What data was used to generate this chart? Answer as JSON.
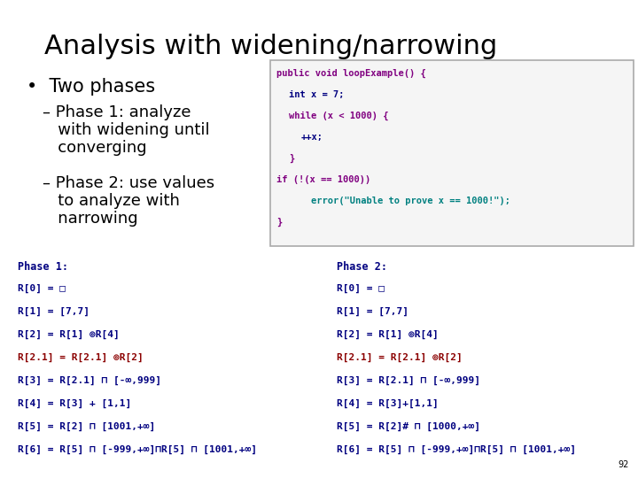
{
  "title": "Analysis with widening/narrowing",
  "bg_color": "#ffffff",
  "title_color": "#000000",
  "title_fontsize": 22,
  "bullet_color": "#000000",
  "bullet_fontsize": 15,
  "sub_bullet_fontsize": 13,
  "code_lines": [
    {
      "text": "public void loopExample() {",
      "color": "#800080",
      "indent": 0
    },
    {
      "text": "int x = 7;",
      "color": "#000080",
      "indent": 1
    },
    {
      "text": "while (x < 1000) {",
      "color": "#800080",
      "indent": 1
    },
    {
      "text": "++x;",
      "color": "#000080",
      "indent": 2
    },
    {
      "text": "}",
      "color": "#800080",
      "indent": 1
    },
    {
      "text": "if (!(x == 1000))",
      "color": "#800080",
      "indent": 0
    },
    {
      "text": "    error(\"Unable to prove x == 1000!\");",
      "color": "#008080",
      "indent": 1
    },
    {
      "text": "}",
      "color": "#800080",
      "indent": 0
    }
  ],
  "phase1_header": "Phase 1:",
  "phase1_lines": [
    {
      "text": "R[0] = □",
      "color": "#000080"
    },
    {
      "text": "R[1] = [7,7]",
      "color": "#000080"
    },
    {
      "text": "R[2] = R[1] ⊚R[4]",
      "color": "#000080"
    },
    {
      "text": "R[2.1] = R[2.1] ⊚R[2]",
      "color": "#8b0000"
    },
    {
      "text": "R[3] = R[2.1] ⊓ [-∞,999]",
      "color": "#000080"
    },
    {
      "text": "R[4] = R[3] + [1,1]",
      "color": "#000080"
    },
    {
      "text": "R[5] = R[2] ⊓ [1001,+∞]",
      "color": "#000080"
    },
    {
      "text": "R[6] = R[5] ⊓ [-999,+∞]⊓R[5] ⊓ [1001,+∞]",
      "color": "#000080"
    }
  ],
  "phase2_header": "Phase 2:",
  "phase2_lines": [
    {
      "text": "R[0] = □",
      "color": "#000080"
    },
    {
      "text": "R[1] = [7,7]",
      "color": "#000080"
    },
    {
      "text": "R[2] = R[1] ⊚R[4]",
      "color": "#000080"
    },
    {
      "text": "R[2.1] = R[2.1] ⊚R[2]",
      "color": "#8b0000"
    },
    {
      "text": "R[3] = R[2.1] ⊓ [-∞,999]",
      "color": "#000080"
    },
    {
      "text": "R[4] = R[3]+[1,1]",
      "color": "#000080"
    },
    {
      "text": "R[5] = R[2]# ⊓ [1000,+∞]",
      "color": "#000080"
    },
    {
      "text": "R[6] = R[5] ⊓ [-999,+∞]⊓R[5] ⊓ [1001,+∞]",
      "color": "#000080"
    }
  ],
  "footer_num": "92"
}
